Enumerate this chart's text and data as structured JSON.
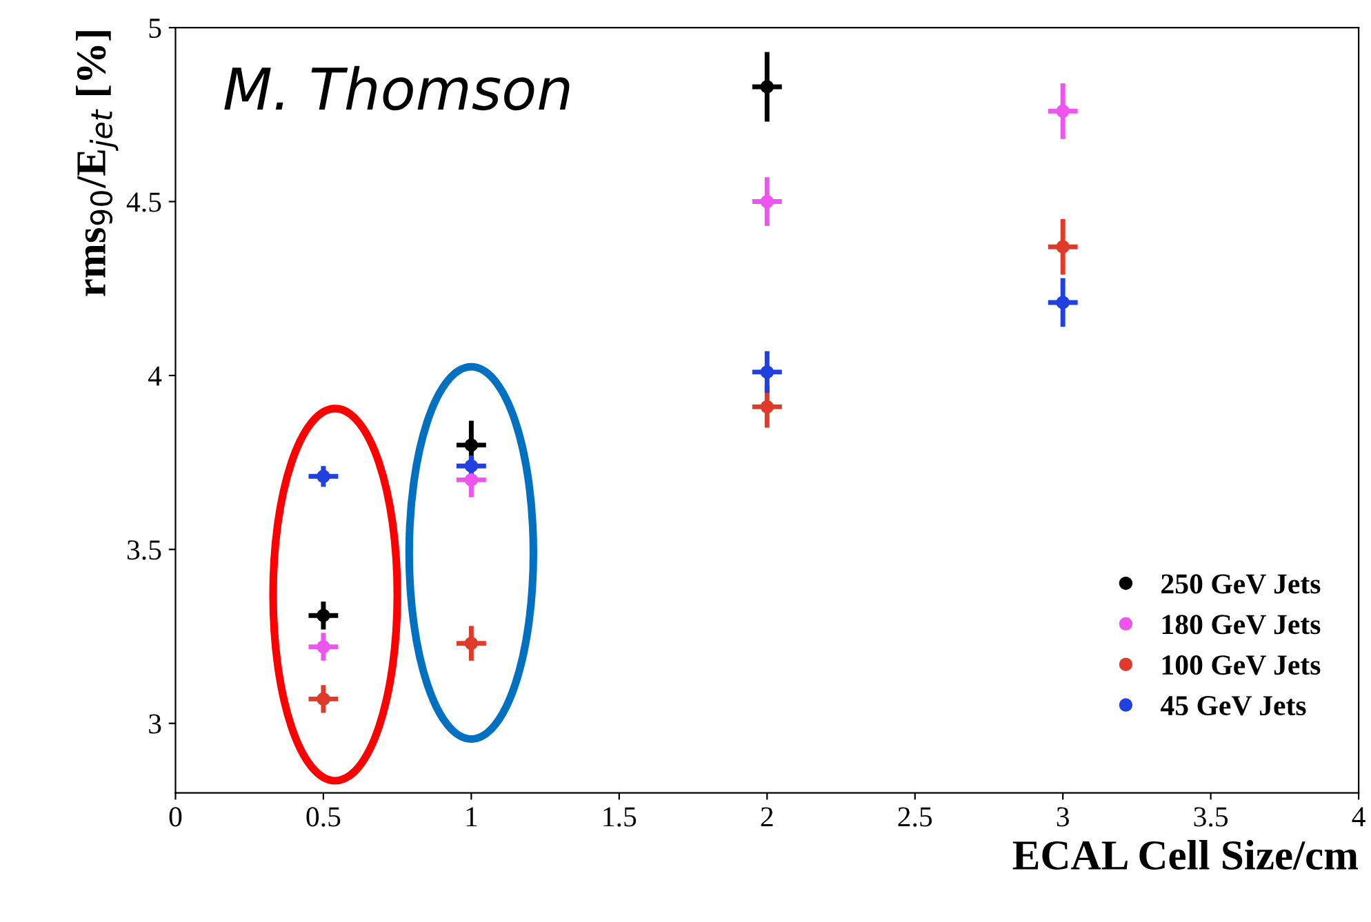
{
  "chart_data": {
    "type": "scatter",
    "xlabel": "ECAL Cell Size/cm",
    "ylabel": "rms$_{90}$/E$_{jet}$ [%]",
    "x": [
      0.5,
      1,
      2,
      3
    ],
    "series": [
      {
        "name": "250 GeV Jets",
        "color": "#000000",
        "values": [
          3.31,
          3.8,
          4.83,
          null
        ],
        "errors": [
          0.04,
          0.07,
          0.1,
          null
        ],
        "xerrors": [
          0.05,
          0.05,
          0.05,
          null
        ]
      },
      {
        "name": "180 GeV Jets",
        "color": "#ee55ee",
        "values": [
          3.22,
          3.7,
          4.5,
          4.76
        ],
        "errors": [
          0.04,
          0.05,
          0.07,
          0.08
        ],
        "xerrors": [
          0.05,
          0.05,
          0.05,
          0.05
        ]
      },
      {
        "name": "100 GeV Jets",
        "color": "#e03a2a",
        "values": [
          3.07,
          3.23,
          3.91,
          4.37
        ],
        "errors": [
          0.04,
          0.05,
          0.06,
          0.08
        ],
        "xerrors": [
          0.05,
          0.05,
          0.05,
          0.05
        ]
      },
      {
        "name": "45 GeV Jets",
        "color": "#2040e0",
        "values": [
          3.71,
          3.74,
          4.01,
          4.21
        ],
        "errors": [
          0.03,
          0.03,
          0.06,
          0.07
        ],
        "xerrors": [
          0.05,
          0.05,
          0.05,
          0.05
        ]
      }
    ],
    "xlim": [
      0,
      4
    ],
    "ylim": [
      2.8,
      5.0
    ],
    "xticks": [
      0,
      0.5,
      1,
      1.5,
      2,
      2.5,
      3,
      3.5,
      4
    ],
    "yticks": [
      3,
      3.5,
      4,
      4.5,
      5
    ],
    "annotations": [
      "M. Thomson"
    ],
    "marker": "circle",
    "legend": "bottom right",
    "grid": false
  }
}
